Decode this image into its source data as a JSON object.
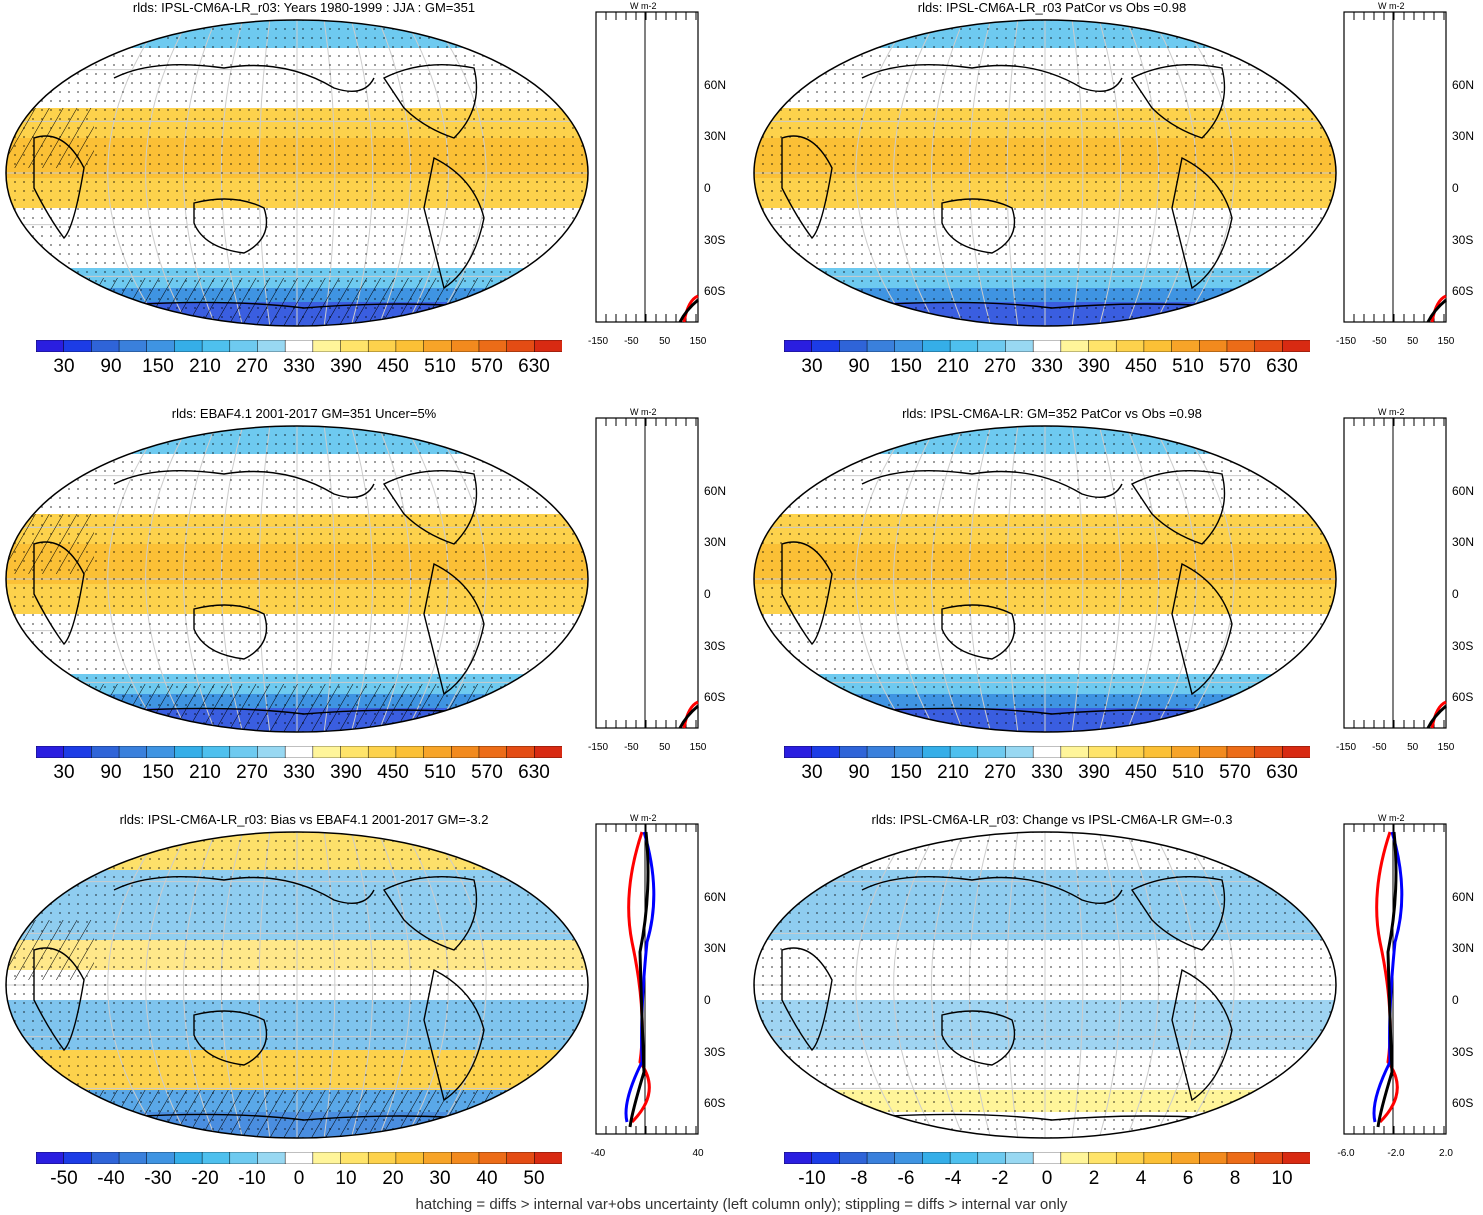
{
  "panels": [
    {
      "id": "p1",
      "title": "rlds: IPSL-CM6A-LR_r03: Years 1980-1999 : JJA : GM=351",
      "colorbar_labels": [
        "30",
        "90",
        "150",
        "210",
        "270",
        "330",
        "390",
        "450",
        "510",
        "570",
        "630"
      ],
      "zonal_x_labels": [
        "-150",
        "-50",
        "50",
        "150"
      ],
      "lat_labels": [
        "60N",
        "30N",
        "0",
        "30S",
        "60S"
      ],
      "zonal_unit": "W m-2",
      "hatching": true
    },
    {
      "id": "p2",
      "title": "rlds: IPSL-CM6A-LR_r03 PatCor vs Obs =0.98",
      "colorbar_labels": [
        "30",
        "90",
        "150",
        "210",
        "270",
        "330",
        "390",
        "450",
        "510",
        "570",
        "630"
      ],
      "zonal_x_labels": [
        "-150",
        "-50",
        "50",
        "150"
      ],
      "lat_labels": [
        "60N",
        "30N",
        "0",
        "30S",
        "60S"
      ],
      "zonal_unit": "W m-2",
      "hatching": false
    },
    {
      "id": "p3",
      "title": "rlds: EBAF4.1 2001-2017 GM=351 Uncer=5%",
      "colorbar_labels": [
        "30",
        "90",
        "150",
        "210",
        "270",
        "330",
        "390",
        "450",
        "510",
        "570",
        "630"
      ],
      "zonal_x_labels": [
        "-150",
        "-50",
        "50",
        "150"
      ],
      "lat_labels": [
        "60N",
        "30N",
        "0",
        "30S",
        "60S"
      ],
      "zonal_unit": "W m-2",
      "hatching": true
    },
    {
      "id": "p4",
      "title": "rlds: IPSL-CM6A-LR: GM=352 PatCor vs Obs =0.98",
      "colorbar_labels": [
        "30",
        "90",
        "150",
        "210",
        "270",
        "330",
        "390",
        "450",
        "510",
        "570",
        "630"
      ],
      "zonal_x_labels": [
        "-150",
        "-50",
        "50",
        "150"
      ],
      "lat_labels": [
        "60N",
        "30N",
        "0",
        "30S",
        "60S"
      ],
      "zonal_unit": "W m-2",
      "hatching": false
    },
    {
      "id": "p5",
      "title": "rlds: IPSL-CM6A-LR_r03: Bias vs EBAF4.1 2001-2017 GM=-3.2",
      "colorbar_labels": [
        "-50",
        "-40",
        "-30",
        "-20",
        "-10",
        "0",
        "10",
        "20",
        "30",
        "40",
        "50"
      ],
      "zonal_x_labels": [
        "-40",
        "40"
      ],
      "lat_labels": [
        "60N",
        "30N",
        "0",
        "30S",
        "60S"
      ],
      "zonal_unit": "W m-2",
      "hatching": true
    },
    {
      "id": "p6",
      "title": "rlds: IPSL-CM6A-LR_r03: Change vs IPSL-CM6A-LR GM=-0.3",
      "colorbar_labels": [
        "-10",
        "-8",
        "-6",
        "-4",
        "-2",
        "0",
        "2",
        "4",
        "6",
        "8",
        "10"
      ],
      "zonal_x_labels": [
        "-6.0",
        "-2.0",
        "2.0"
      ],
      "lat_labels": [
        "60N",
        "30N",
        "0",
        "30S",
        "60S"
      ],
      "zonal_unit": "W m-2",
      "hatching": false
    }
  ],
  "colors": {
    "cold_scale": [
      "#2a1ee0",
      "#1c3ce6",
      "#2f64d8",
      "#3a80dc",
      "#3f94e2",
      "#35aee8",
      "#4ec0ee",
      "#6ecaf0",
      "#98d8f2",
      "#ffffff"
    ],
    "warm_scale": [
      "#ffffff",
      "#fff59a",
      "#ffe46a",
      "#fdd24c",
      "#fbc036",
      "#f7a428",
      "#f28a1e",
      "#ec6c18",
      "#e44c14",
      "#d82a12"
    ],
    "zonal_red": "#ff0000",
    "zonal_blue": "#0000ff",
    "zonal_black": "#000000"
  },
  "footer": "hatching = diffs > internal var+obs uncertainty (left column only); stippling = diffs > internal var only"
}
